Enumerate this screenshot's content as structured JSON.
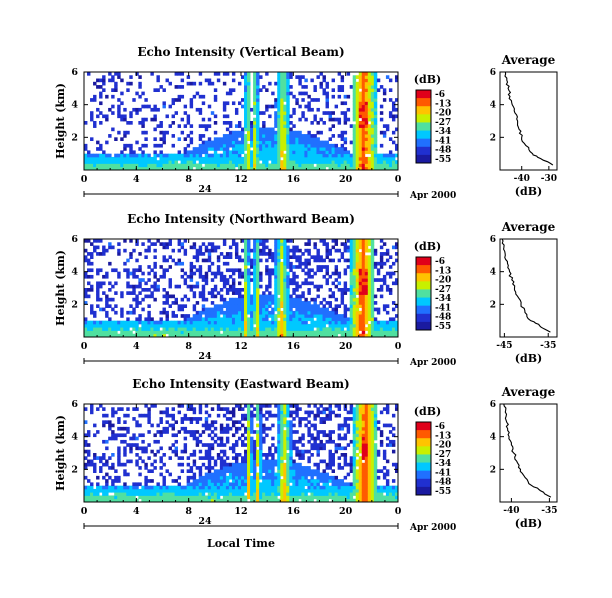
{
  "figure": {
    "date_label": "Apr 2000",
    "date_tick": "24",
    "xlabel": "Local Time"
  },
  "colorbar": {
    "unit": "(dB)",
    "ticks": [
      "-6",
      "-13",
      "-20",
      "-27",
      "-34",
      "-41",
      "-48",
      "-55"
    ],
    "colors": [
      "#e0001a",
      "#ff5a00",
      "#ffc300",
      "#c8f000",
      "#50e0a0",
      "#00c8ff",
      "#2070ff",
      "#2030d0",
      "#1a1aa0"
    ]
  },
  "chart_data": [
    {
      "type": "heatmap",
      "title": "Echo Intensity (Vertical Beam)",
      "xlabel": "",
      "ylabel": "Height (km)",
      "x_ticks": [
        "0",
        "4",
        "8",
        "12",
        "16",
        "20",
        "0"
      ],
      "y_ticks": [
        "2",
        "4",
        "6"
      ],
      "xlim": [
        0,
        24
      ],
      "ylim": [
        0,
        6
      ],
      "colorbar_range_db": [
        -55,
        -6
      ],
      "features": {
        "surface_layer_top_km": 0.9,
        "convective_cells_local_time": [
          12.5,
          13.1,
          15.2,
          21.4
        ],
        "peak_cell_local_time": 21.4
      }
    },
    {
      "type": "line",
      "title": "Average",
      "xlabel": "(dB)",
      "x_ticks": [
        "-40",
        "-30"
      ],
      "y_ticks": [
        "2",
        "4",
        "6"
      ],
      "xlim": [
        -48,
        -27
      ],
      "ylim": [
        0,
        6
      ],
      "x": [
        -28.5,
        -33,
        -36,
        -38.5,
        -40,
        -41,
        -41.5,
        -42.5,
        -43.5,
        -44.3,
        -45,
        -45.5,
        -46
      ],
      "y": [
        0.3,
        0.7,
        1.0,
        1.5,
        2.0,
        2.5,
        3.0,
        3.5,
        4.0,
        4.5,
        5.0,
        5.5,
        6.0
      ]
    },
    {
      "type": "heatmap",
      "title": "Echo Intensity (Northward Beam)",
      "xlabel": "",
      "ylabel": "Height (km)",
      "x_ticks": [
        "0",
        "4",
        "8",
        "12",
        "16",
        "20",
        "0"
      ],
      "y_ticks": [
        "2",
        "4",
        "6"
      ],
      "xlim": [
        0,
        24
      ],
      "ylim": [
        0,
        6
      ],
      "colorbar_range_db": [
        -55,
        -6
      ],
      "features": {
        "surface_layer_top_km": 1.0,
        "convective_cells_local_time": [
          12.4,
          13.2,
          15.1,
          21.3
        ],
        "peak_cell_local_time": 21.3
      }
    },
    {
      "type": "line",
      "title": "Average",
      "xlabel": "(dB)",
      "x_ticks": [
        "-45",
        "-35"
      ],
      "y_ticks": [
        "2",
        "4",
        "6"
      ],
      "xlim": [
        -46,
        -33
      ],
      "ylim": [
        0,
        6
      ],
      "x": [
        -34.5,
        -37,
        -39,
        -40.3,
        -41.2,
        -42,
        -42.7,
        -43.3,
        -43.8,
        -44.3,
        -44.8,
        -45.1,
        -45.5
      ],
      "y": [
        0.3,
        0.7,
        1.0,
        1.5,
        2.0,
        2.5,
        3.0,
        3.5,
        4.0,
        4.5,
        5.0,
        5.5,
        6.0
      ]
    },
    {
      "type": "heatmap",
      "title": "Echo Intensity (Eastward Beam)",
      "xlabel": "",
      "ylabel": "Height (km)",
      "x_ticks": [
        "0",
        "4",
        "8",
        "12",
        "16",
        "20",
        "0"
      ],
      "y_ticks": [
        "2",
        "4",
        "6"
      ],
      "xlim": [
        0,
        24
      ],
      "ylim": [
        0,
        6
      ],
      "colorbar_range_db": [
        -55,
        -6
      ],
      "features": {
        "surface_layer_top_km": 1.0,
        "convective_cells_local_time": [
          12.6,
          13.3,
          15.3,
          21.5
        ],
        "peak_cell_local_time": 21.5
      }
    },
    {
      "type": "line",
      "title": "Average",
      "xlabel": "(dB)",
      "x_ticks": [
        "-40",
        "-35"
      ],
      "y_ticks": [
        "2",
        "4",
        "6"
      ],
      "xlim": [
        -41.5,
        -34
      ],
      "ylim": [
        0,
        6
      ],
      "x": [
        -34.8,
        -36.2,
        -37.3,
        -38.2,
        -38.8,
        -39.3,
        -39.7,
        -40.0,
        -40.3,
        -40.5,
        -40.7,
        -40.8,
        -41.0
      ],
      "y": [
        0.3,
        0.7,
        1.0,
        1.5,
        2.0,
        2.5,
        3.0,
        3.5,
        4.0,
        4.5,
        5.0,
        5.5,
        6.0
      ]
    }
  ]
}
